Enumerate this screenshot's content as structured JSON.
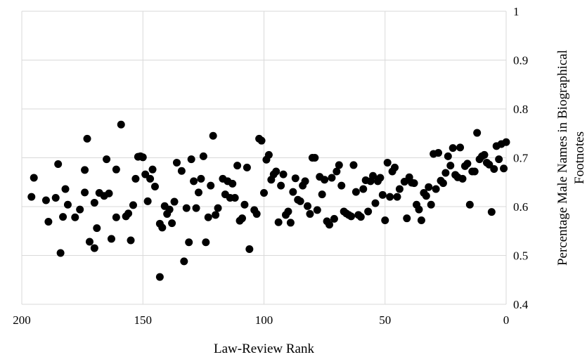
{
  "chart_data": {
    "type": "scatter",
    "title": "",
    "xlabel": "Law-Review Rank",
    "ylabel_lines": [
      "Percentage Male Names in Biographical",
      "Footnotes"
    ],
    "xlim": [
      200,
      0
    ],
    "x_reversed": true,
    "ylim": [
      0.4,
      1
    ],
    "xticks": [
      200,
      150,
      100,
      50,
      0
    ],
    "yticks": [
      "0.4",
      "0.5",
      "0.6",
      "0.7",
      "0.8",
      "0.9",
      "1"
    ],
    "y_axis_side": "right",
    "grid": "vertical and horizontal",
    "legend": "none",
    "point_color": "#000000",
    "points": [
      [
        196,
        0.62
      ],
      [
        195,
        0.659
      ],
      [
        190,
        0.613
      ],
      [
        189,
        0.569
      ],
      [
        186,
        0.618
      ],
      [
        185,
        0.687
      ],
      [
        184,
        0.505
      ],
      [
        183,
        0.579
      ],
      [
        182,
        0.636
      ],
      [
        181,
        0.604
      ],
      [
        178,
        0.578
      ],
      [
        176,
        0.594
      ],
      [
        174,
        0.629
      ],
      [
        174,
        0.675
      ],
      [
        173,
        0.739
      ],
      [
        172,
        0.528
      ],
      [
        170,
        0.608
      ],
      [
        170,
        0.515
      ],
      [
        169,
        0.556
      ],
      [
        168,
        0.628
      ],
      [
        166,
        0.622
      ],
      [
        165,
        0.697
      ],
      [
        164,
        0.627
      ],
      [
        163,
        0.534
      ],
      [
        161,
        0.676
      ],
      [
        161,
        0.578
      ],
      [
        159,
        0.768
      ],
      [
        157,
        0.58
      ],
      [
        156,
        0.586
      ],
      [
        155,
        0.531
      ],
      [
        154,
        0.603
      ],
      [
        153,
        0.657
      ],
      [
        152,
        0.702
      ],
      [
        151,
        0.703
      ],
      [
        150,
        0.701
      ],
      [
        149,
        0.666
      ],
      [
        148,
        0.611
      ],
      [
        147,
        0.657
      ],
      [
        146,
        0.676
      ],
      [
        145,
        0.641
      ],
      [
        143,
        0.456
      ],
      [
        143,
        0.565
      ],
      [
        142,
        0.557
      ],
      [
        141,
        0.601
      ],
      [
        140,
        0.585
      ],
      [
        139,
        0.594
      ],
      [
        138,
        0.566
      ],
      [
        137,
        0.61
      ],
      [
        136,
        0.69
      ],
      [
        134,
        0.673
      ],
      [
        133,
        0.488
      ],
      [
        132,
        0.597
      ],
      [
        131,
        0.527
      ],
      [
        130,
        0.697
      ],
      [
        129,
        0.652
      ],
      [
        128,
        0.597
      ],
      [
        127,
        0.629
      ],
      [
        126,
        0.657
      ],
      [
        125,
        0.703
      ],
      [
        124,
        0.527
      ],
      [
        123,
        0.578
      ],
      [
        122,
        0.643
      ],
      [
        121,
        0.745
      ],
      [
        120,
        0.583
      ],
      [
        119,
        0.597
      ],
      [
        117,
        0.657
      ],
      [
        116,
        0.625
      ],
      [
        115,
        0.652
      ],
      [
        114,
        0.618
      ],
      [
        113,
        0.647
      ],
      [
        112,
        0.618
      ],
      [
        111,
        0.684
      ],
      [
        110,
        0.571
      ],
      [
        109,
        0.576
      ],
      [
        108,
        0.604
      ],
      [
        107,
        0.68
      ],
      [
        106,
        0.513
      ],
      [
        104,
        0.593
      ],
      [
        103,
        0.585
      ],
      [
        102,
        0.739
      ],
      [
        101,
        0.735
      ],
      [
        100,
        0.628
      ],
      [
        99,
        0.696
      ],
      [
        98,
        0.706
      ],
      [
        97,
        0.655
      ],
      [
        96,
        0.666
      ],
      [
        95,
        0.672
      ],
      [
        94,
        0.568
      ],
      [
        93,
        0.643
      ],
      [
        92,
        0.666
      ],
      [
        91,
        0.583
      ],
      [
        90,
        0.59
      ],
      [
        89,
        0.567
      ],
      [
        88,
        0.63
      ],
      [
        87,
        0.658
      ],
      [
        86,
        0.614
      ],
      [
        85,
        0.611
      ],
      [
        84,
        0.643
      ],
      [
        83,
        0.652
      ],
      [
        82,
        0.601
      ],
      [
        81,
        0.585
      ],
      [
        80,
        0.7
      ],
      [
        79,
        0.7
      ],
      [
        78,
        0.593
      ],
      [
        77,
        0.661
      ],
      [
        76,
        0.625
      ],
      [
        75,
        0.655
      ],
      [
        74,
        0.57
      ],
      [
        73,
        0.563
      ],
      [
        72,
        0.659
      ],
      [
        71,
        0.575
      ],
      [
        70,
        0.672
      ],
      [
        69,
        0.685
      ],
      [
        68,
        0.643
      ],
      [
        67,
        0.59
      ],
      [
        66,
        0.586
      ],
      [
        65,
        0.583
      ],
      [
        64,
        0.58
      ],
      [
        63,
        0.685
      ],
      [
        62,
        0.63
      ],
      [
        61,
        0.583
      ],
      [
        60,
        0.579
      ],
      [
        59,
        0.636
      ],
      [
        58,
        0.654
      ],
      [
        57,
        0.59
      ],
      [
        56,
        0.652
      ],
      [
        55,
        0.663
      ],
      [
        54,
        0.607
      ],
      [
        53,
        0.652
      ],
      [
        52,
        0.659
      ],
      [
        51,
        0.624
      ],
      [
        50,
        0.572
      ],
      [
        49,
        0.69
      ],
      [
        48,
        0.62
      ],
      [
        47,
        0.672
      ],
      [
        46,
        0.68
      ],
      [
        45,
        0.62
      ],
      [
        44,
        0.636
      ],
      [
        42,
        0.651
      ],
      [
        41,
        0.576
      ],
      [
        40,
        0.66
      ],
      [
        39,
        0.649
      ],
      [
        38,
        0.648
      ],
      [
        37,
        0.604
      ],
      [
        36,
        0.594
      ],
      [
        35,
        0.572
      ],
      [
        34,
        0.628
      ],
      [
        33,
        0.622
      ],
      [
        32,
        0.64
      ],
      [
        31,
        0.604
      ],
      [
        30,
        0.708
      ],
      [
        29,
        0.636
      ],
      [
        28,
        0.71
      ],
      [
        27,
        0.653
      ],
      [
        26,
        0.648
      ],
      [
        25,
        0.669
      ],
      [
        24,
        0.703
      ],
      [
        23,
        0.684
      ],
      [
        22,
        0.72
      ],
      [
        21,
        0.665
      ],
      [
        20,
        0.66
      ],
      [
        19,
        0.721
      ],
      [
        18,
        0.657
      ],
      [
        17,
        0.683
      ],
      [
        16,
        0.688
      ],
      [
        15,
        0.604
      ],
      [
        14,
        0.672
      ],
      [
        13,
        0.672
      ],
      [
        12,
        0.751
      ],
      [
        11,
        0.697
      ],
      [
        10,
        0.703
      ],
      [
        9,
        0.706
      ],
      [
        8,
        0.69
      ],
      [
        7,
        0.686
      ],
      [
        6,
        0.589
      ],
      [
        5,
        0.677
      ],
      [
        4,
        0.724
      ],
      [
        3,
        0.697
      ],
      [
        2,
        0.728
      ],
      [
        1,
        0.678
      ],
      [
        0,
        0.732
      ]
    ]
  }
}
